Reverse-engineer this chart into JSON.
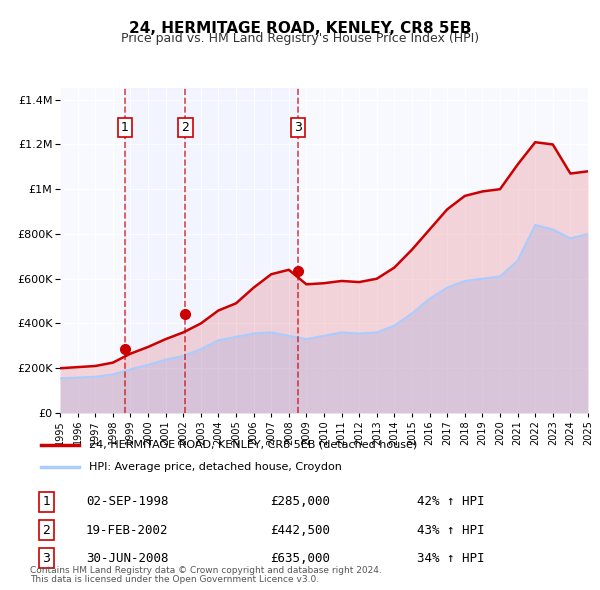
{
  "title": "24, HERMITAGE ROAD, KENLEY, CR8 5EB",
  "subtitle": "Price paid vs. HM Land Registry's House Price Index (HPI)",
  "legend_line1": "24, HERMITAGE ROAD, KENLEY, CR8 5EB (detached house)",
  "legend_line2": "HPI: Average price, detached house, Croydon",
  "footer1": "Contains HM Land Registry data © Crown copyright and database right 2024.",
  "footer2": "This data is licensed under the Open Government Licence v3.0.",
  "transactions": [
    {
      "num": 1,
      "date": "02-SEP-1998",
      "price": "£285,000",
      "pct": "42% ↑ HPI",
      "year": 1998.67
    },
    {
      "num": 2,
      "date": "19-FEB-2002",
      "price": "£442,500",
      "pct": "43% ↑ HPI",
      "year": 2002.13
    },
    {
      "num": 3,
      "date": "30-JUN-2008",
      "price": "£635,000",
      "pct": "34% ↑ HPI",
      "year": 2008.5
    }
  ],
  "sale_values": [
    285000,
    442500,
    635000
  ],
  "sale_years": [
    1998.67,
    2002.13,
    2008.5
  ],
  "hpi_color": "#aaccff",
  "price_color": "#cc0000",
  "background_color": "#f0f4ff",
  "plot_bg": "#f8f8ff",
  "ylim": [
    0,
    1450000
  ],
  "xlim_start": 1995,
  "xlim_end": 2025,
  "hpi_years": [
    1995,
    1996,
    1997,
    1998,
    1999,
    2000,
    2001,
    2002,
    2003,
    2004,
    2005,
    2006,
    2007,
    2008,
    2009,
    2010,
    2011,
    2012,
    2013,
    2014,
    2015,
    2016,
    2017,
    2018,
    2019,
    2020,
    2021,
    2022,
    2023,
    2024,
    2025
  ],
  "hpi_values": [
    155000,
    158000,
    162000,
    172000,
    195000,
    215000,
    238000,
    255000,
    285000,
    325000,
    340000,
    355000,
    360000,
    345000,
    330000,
    345000,
    360000,
    355000,
    360000,
    390000,
    445000,
    510000,
    560000,
    590000,
    600000,
    610000,
    680000,
    840000,
    820000,
    780000,
    800000
  ],
  "price_line_years": [
    1995,
    1996,
    1997,
    1998,
    1999,
    2000,
    2001,
    2002,
    2003,
    2004,
    2005,
    2006,
    2007,
    2008,
    2009,
    2010,
    2011,
    2012,
    2013,
    2014,
    2015,
    2016,
    2017,
    2018,
    2019,
    2020,
    2021,
    2022,
    2023,
    2024,
    2025
  ],
  "price_line_values": [
    200000,
    205000,
    210000,
    225000,
    265000,
    295000,
    330000,
    360000,
    400000,
    458000,
    490000,
    560000,
    620000,
    640000,
    575000,
    580000,
    590000,
    585000,
    600000,
    650000,
    730000,
    820000,
    910000,
    970000,
    990000,
    1000000,
    1110000,
    1210000,
    1200000,
    1070000,
    1080000
  ]
}
